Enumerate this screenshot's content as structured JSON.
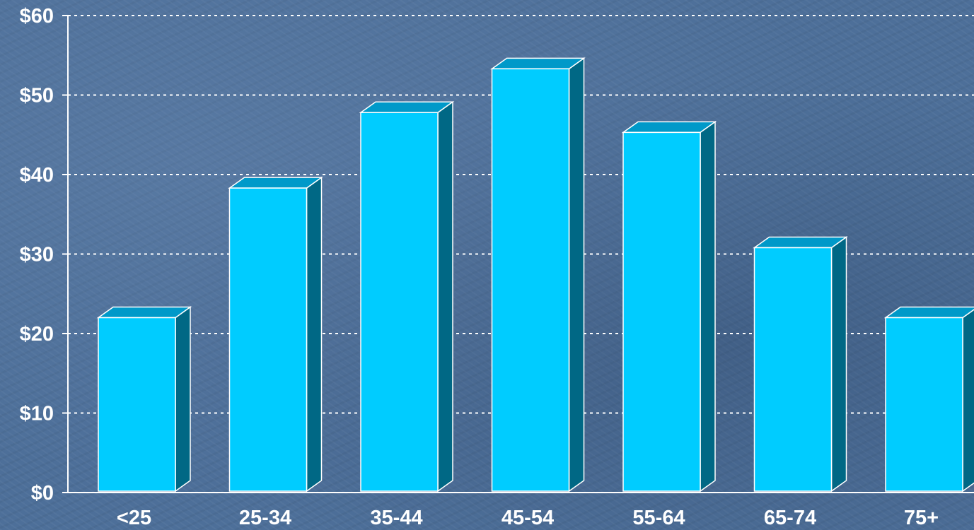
{
  "chart_data": {
    "type": "bar",
    "categories": [
      "<25",
      "25-34",
      "35-44",
      "45-54",
      "55-64",
      "65-74",
      "75+"
    ],
    "values": [
      22,
      38.3,
      47.8,
      53.3,
      45.3,
      30.8,
      22
    ],
    "title": "",
    "xlabel": "",
    "ylabel": "",
    "ylim": [
      0,
      60
    ],
    "y_ticks": [
      0,
      10,
      20,
      30,
      40,
      50,
      60
    ],
    "y_tick_labels": [
      "$0",
      "$10",
      "$20",
      "$30",
      "$40",
      "$50",
      "$60"
    ],
    "grid": true,
    "legend": "none",
    "style": "3d",
    "colors": {
      "bar_front": "#00ccff",
      "bar_top": "#0099c9",
      "bar_side": "#006885",
      "bar_outline": "#ffffff",
      "gridline": "#ffffff",
      "axis": "#ffffff",
      "text": "#ffffff"
    }
  }
}
